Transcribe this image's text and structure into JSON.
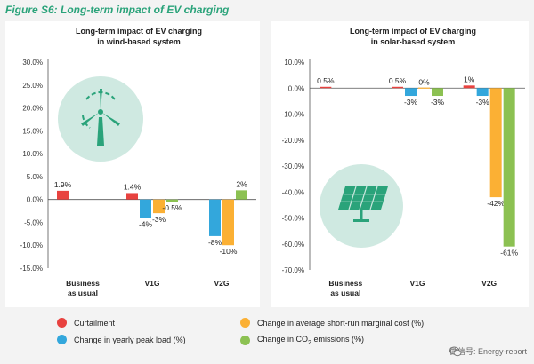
{
  "figure_title": "Figure S6: Long-term impact of EV charging",
  "colors": {
    "curtailment": "#e8423f",
    "peak_load": "#33a7dc",
    "marginal_cost": "#fbb034",
    "co2": "#8cc152",
    "icon_circle": "#cfe9e1",
    "icon_stroke": "#2aa37a"
  },
  "chart_data": [
    {
      "type": "bar",
      "title": "Long-term impact of EV charging",
      "subtitle": "in wind-based system",
      "categories": [
        "Business\nas usual",
        "V1G",
        "V2G"
      ],
      "series": [
        {
          "name": "Curtailment",
          "values": [
            1.9,
            1.4,
            null
          ],
          "labels": [
            "1.9%",
            "1.4%",
            ""
          ]
        },
        {
          "name": "Change in yearly peak load (%)",
          "values": [
            null,
            -4,
            -8
          ],
          "labels": [
            "",
            "-4%",
            "-8%"
          ]
        },
        {
          "name": "Change in average short-run marginal cost (%)",
          "values": [
            null,
            -3,
            -10
          ],
          "labels": [
            "",
            "-3%",
            "-10%"
          ]
        },
        {
          "name": "Change in CO2 emissions (%)",
          "values": [
            null,
            -0.5,
            2
          ],
          "labels": [
            "",
            "-0.5%",
            "2%"
          ]
        }
      ],
      "ylim": [
        -15,
        30
      ],
      "yticks": [
        "30.0%",
        "25.0%",
        "20.0%",
        "15.0%",
        "10.0%",
        "5.0%",
        "0.0%",
        "-5.0%",
        "-10.0%",
        "-15.0%"
      ],
      "ytick_values": [
        30,
        25,
        20,
        15,
        10,
        5,
        0,
        -5,
        -10,
        -15
      ],
      "icon": "wind-turbine-icon"
    },
    {
      "type": "bar",
      "title": "Long-term impact of EV charging",
      "subtitle": "in solar-based system",
      "categories": [
        "Business\nas usual",
        "V1G",
        "V2G"
      ],
      "series": [
        {
          "name": "Curtailment",
          "values": [
            0.5,
            0.5,
            1
          ],
          "labels": [
            "0.5%",
            "0.5%",
            "1%"
          ]
        },
        {
          "name": "Change in yearly peak load (%)",
          "values": [
            null,
            -3,
            -3
          ],
          "labels": [
            "",
            "-3%",
            "-3%"
          ]
        },
        {
          "name": "Change in average short-run marginal cost (%)",
          "values": [
            null,
            0,
            -42
          ],
          "labels": [
            "",
            "0%",
            "-42%"
          ]
        },
        {
          "name": "Change in CO2 emissions (%)",
          "values": [
            null,
            -3,
            -61
          ],
          "labels": [
            "",
            "-3%",
            "-61%"
          ]
        }
      ],
      "ylim": [
        -70,
        10
      ],
      "yticks": [
        "10.0%",
        "0.0%",
        "-10.0%",
        "-20.0%",
        "-30.0%",
        "-40.0%",
        "-50.0%",
        "-60.0%",
        "-70.0%"
      ],
      "ytick_values": [
        10,
        0,
        -10,
        -20,
        -30,
        -40,
        -50,
        -60,
        -70
      ],
      "icon": "solar-panel-icon"
    }
  ],
  "legend": [
    {
      "label": "Curtailment",
      "color_key": "curtailment"
    },
    {
      "label": "Change in average short-run marginal cost (%)",
      "color_key": "marginal_cost"
    },
    {
      "label": "Change in yearly peak load (%)",
      "color_key": "peak_load"
    },
    {
      "label_prefix": "Change in CO",
      "label_sub": "2",
      "label_suffix": " emissions (%)",
      "color_key": "co2"
    }
  ],
  "watermark": "微信号: Energy-report"
}
